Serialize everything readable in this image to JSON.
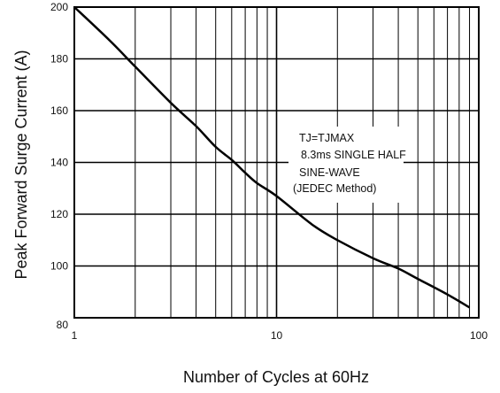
{
  "chart_data": {
    "type": "line",
    "title": "",
    "xlabel": "Number of Cycles at 60Hz",
    "ylabel": "Peak Forward Surge Current (A)",
    "x_scale": "log",
    "xlim": [
      1,
      100
    ],
    "ylim": [
      80,
      200
    ],
    "x_ticks": [
      "1",
      "10",
      "100"
    ],
    "y_ticks": [
      "80",
      "100",
      "120",
      "140",
      "160",
      "180",
      "200"
    ],
    "y_tick_values": [
      80,
      100,
      120,
      140,
      160,
      180,
      200
    ],
    "grid": true,
    "series": [
      {
        "name": "",
        "x": [
          1,
          1.5,
          2,
          3,
          4,
          5,
          6,
          7,
          8,
          10,
          15,
          20,
          30,
          40,
          50,
          70,
          90
        ],
        "y": [
          200,
          187,
          177,
          163,
          154,
          146,
          141,
          136,
          132,
          127,
          116,
          110,
          103,
          99,
          95,
          89,
          84
        ]
      }
    ],
    "annotations": [
      "TJ=TJMAX",
      "8.3ms SINGLE HALF",
      "SINE-WAVE",
      "(JEDEC Method)"
    ],
    "colors": {
      "line": "#000000",
      "grid": "#000000"
    }
  }
}
